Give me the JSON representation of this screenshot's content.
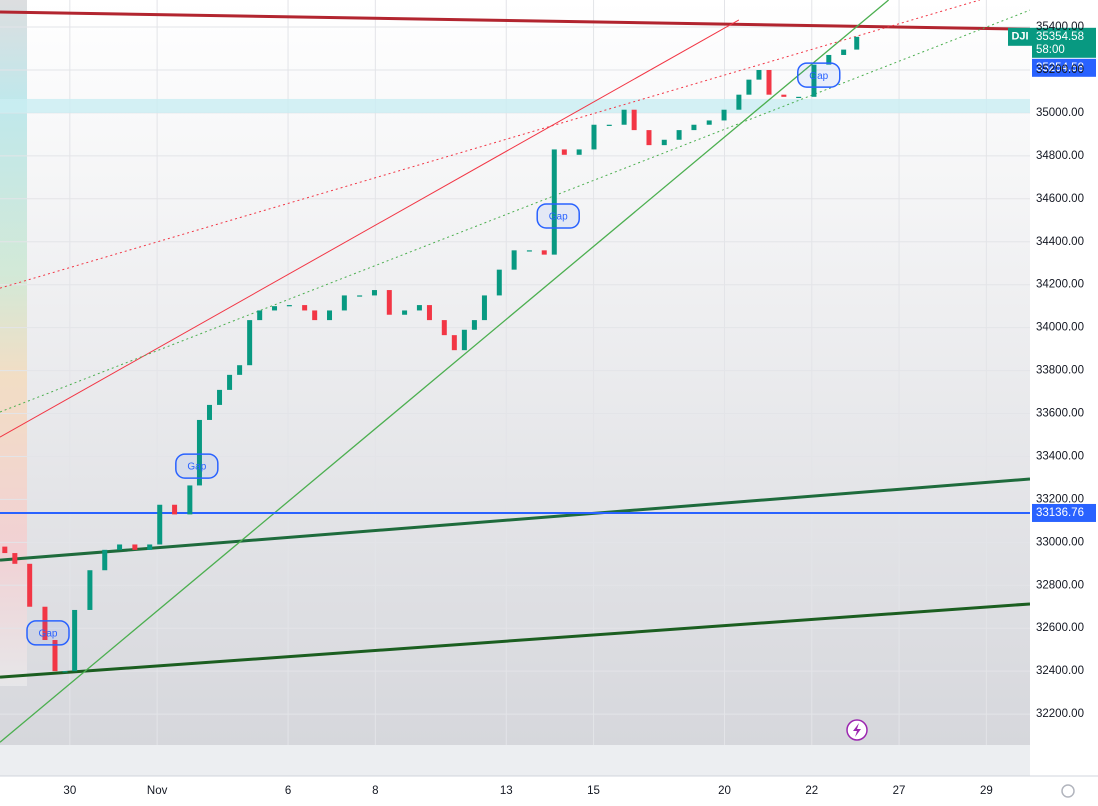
{
  "chart_data": {
    "type": "candlestick",
    "symbol": "DJI",
    "x": [
      -1.49,
      -1.26,
      -0.92,
      -0.57,
      -0.34,
      -0.11,
      0.11,
      0.46,
      0.8,
      1.14,
      1.49,
      1.83,
      2.06,
      2.4,
      2.75,
      2.97,
      3.2,
      3.43,
      3.66,
      3.89,
      4.12,
      4.35,
      4.69,
      5.03,
      5.38,
      5.61,
      5.95,
      6.29,
      6.64,
      6.98,
      7.32,
      7.67,
      8.01,
      8.24,
      8.58,
      8.81,
      9.04,
      9.27,
      9.5,
      9.84,
      10.18,
      10.53,
      10.87,
      11.1,
      11.33,
      11.67,
      12.01,
      12.36,
      12.7,
      12.93,
      13.27,
      13.62,
      13.96,
      14.3,
      14.65,
      14.99,
      15.33,
      15.56,
      15.79,
      16.02,
      16.36,
      16.7,
      17.05,
      17.39,
      17.73,
      18.03
    ],
    "open": [
      32980,
      32950,
      32900,
      32700,
      32545,
      32400,
      32400,
      32685,
      32870,
      32965,
      32990,
      32965,
      32990,
      33175,
      33130,
      33265,
      33570,
      33640,
      33710,
      33780,
      33825,
      34035,
      34080,
      34100,
      34105,
      34080,
      34035,
      34080,
      34150,
      34150,
      34175,
      34060,
      34080,
      34105,
      34035,
      33965,
      33895,
      33990,
      34035,
      34150,
      34270,
      34360,
      34360,
      34340,
      34830,
      34805,
      34830,
      34945,
      34945,
      35015,
      34920,
      34850,
      34875,
      34920,
      34945,
      34965,
      35015,
      35085,
      35155,
      35200,
      35085,
      35075,
      35075,
      35225,
      35270,
      35295
    ],
    "close": [
      32950,
      32900,
      32700,
      32545,
      32400,
      32400,
      32685,
      32870,
      32965,
      32990,
      32965,
      32990,
      33175,
      33130,
      33265,
      33570,
      33640,
      33710,
      33780,
      33825,
      34035,
      34080,
      34100,
      34105,
      34080,
      34035,
      34080,
      34150,
      34150,
      34175,
      34060,
      34080,
      34105,
      34035,
      33965,
      33895,
      33990,
      34035,
      34150,
      34270,
      34360,
      34360,
      34340,
      34830,
      34805,
      34830,
      34945,
      34945,
      35015,
      34920,
      34850,
      34875,
      34920,
      34945,
      34965,
      35015,
      35085,
      35155,
      35200,
      35085,
      35075,
      35075,
      35225,
      35270,
      35295,
      35354.58
    ],
    "up_color": "#089981",
    "down_color": "#f23645",
    "xlim": [
      -1.6,
      22
    ],
    "ylim": [
      32056,
      35526
    ],
    "xticks": [
      {
        "value": 0,
        "label": "30"
      },
      {
        "value": 2,
        "label": "Nov"
      },
      {
        "value": 5,
        "label": "6"
      },
      {
        "value": 7,
        "label": "8"
      },
      {
        "value": 10,
        "label": "13"
      },
      {
        "value": 12,
        "label": "15"
      },
      {
        "value": 15,
        "label": "20"
      },
      {
        "value": 17,
        "label": "22"
      },
      {
        "value": 19,
        "label": "27"
      },
      {
        "value": 21,
        "label": "29"
      }
    ],
    "yticks": [
      {
        "value": 32200,
        "label": "32200.00"
      },
      {
        "value": 32400,
        "label": "32400.00"
      },
      {
        "value": 32600,
        "label": "32600.00"
      },
      {
        "value": 32800,
        "label": "32800.00"
      },
      {
        "value": 33000,
        "label": "33000.00"
      },
      {
        "value": 33200,
        "label": "33200.00"
      },
      {
        "value": 33400,
        "label": "33400.00"
      },
      {
        "value": 33600,
        "label": "33600.00"
      },
      {
        "value": 33800,
        "label": "33800.00"
      },
      {
        "value": 34000,
        "label": "34000.00"
      },
      {
        "value": 34200,
        "label": "34200.00"
      },
      {
        "value": 34400,
        "label": "34400.00"
      },
      {
        "value": 34600,
        "label": "34600.00"
      },
      {
        "value": 34800,
        "label": "34800.00"
      },
      {
        "value": 35000,
        "label": "35000.00"
      },
      {
        "value": 35200,
        "label": "35200.00"
      },
      {
        "value": 35400,
        "label": "35400.00"
      }
    ],
    "grid": true,
    "countdown": "58:00",
    "prev_price": 35254.58,
    "prev_price_color": "#2962ff",
    "hline": {
      "value": 33136.76,
      "color": "#2962ff"
    },
    "zone": {
      "from": 35000,
      "to": 35065,
      "color": "#c9eef3"
    },
    "trendlines": [
      {
        "color": "#b2252f",
        "width": 3,
        "x": [
          -1.6,
          22
        ],
        "y": [
          35470,
          35390
        ]
      },
      {
        "color": "#1e6b3c",
        "width": 3,
        "x": [
          -1.6,
          22
        ],
        "y": [
          32917,
          33295
        ]
      },
      {
        "color": "#1b5e20",
        "width": 3,
        "x": [
          -1.6,
          22
        ],
        "y": [
          32372,
          32713
        ]
      },
      {
        "color": "#4caf50",
        "width": 1.3,
        "x": [
          -1.6,
          18.76
        ],
        "y": [
          32069,
          35526
        ]
      },
      {
        "color": "#f23645",
        "width": 1,
        "x": [
          -1.6,
          15.33
        ],
        "y": [
          33490,
          35433
        ]
      },
      {
        "color": "#f23645",
        "width": 1,
        "dash": true,
        "x": [
          -1.6,
          20.85
        ],
        "y": [
          34184,
          35526
        ]
      },
      {
        "color": "#4caf50",
        "width": 1,
        "dash": true,
        "x": [
          -1.6,
          22
        ],
        "y": [
          33607,
          35479
        ]
      }
    ],
    "annotations": [
      {
        "text": "Gap",
        "x": -0.5,
        "y": 32578
      },
      {
        "text": "Gap",
        "x": 2.91,
        "y": 33355
      },
      {
        "text": "Gap",
        "x": 11.19,
        "y": 34520
      },
      {
        "text": "Gap",
        "x": 17.16,
        "y": 35176
      }
    ]
  }
}
